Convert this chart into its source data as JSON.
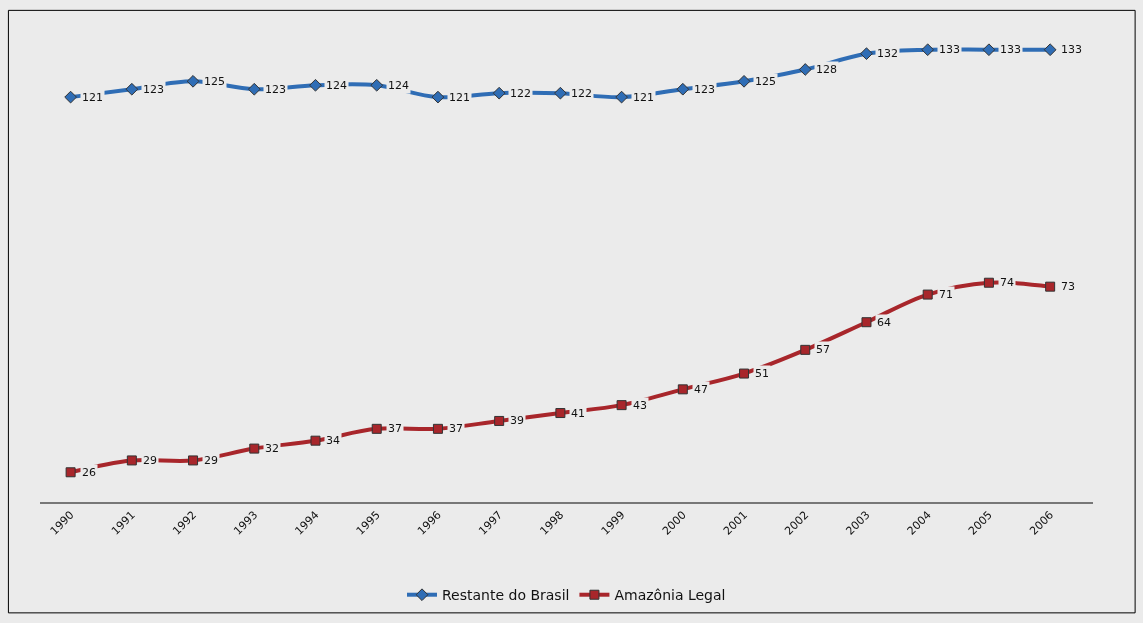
{
  "chart_data": {
    "type": "line",
    "categories": [
      "1990",
      "1991",
      "1992",
      "1993",
      "1994",
      "1995",
      "1996",
      "1997",
      "1998",
      "1999",
      "2000",
      "2001",
      "2002",
      "2003",
      "2004",
      "2005",
      "2006"
    ],
    "series": [
      {
        "name": "Restante do Brasil",
        "color": "#2f6db5",
        "marker": "diamond",
        "values": [
          121,
          123,
          125,
          123,
          124,
          124,
          121,
          122,
          122,
          121,
          123,
          125,
          128,
          132,
          133,
          133,
          133
        ]
      },
      {
        "name": "Amazônia Legal",
        "color": "#a8262b",
        "marker": "square",
        "values": [
          26,
          29,
          29,
          32,
          34,
          37,
          37,
          39,
          41,
          43,
          47,
          51,
          57,
          64,
          71,
          74,
          73
        ]
      }
    ],
    "tick_labels": "x",
    "data_labels": true,
    "grid": false,
    "legend": "bottom",
    "line_style": "solid"
  }
}
